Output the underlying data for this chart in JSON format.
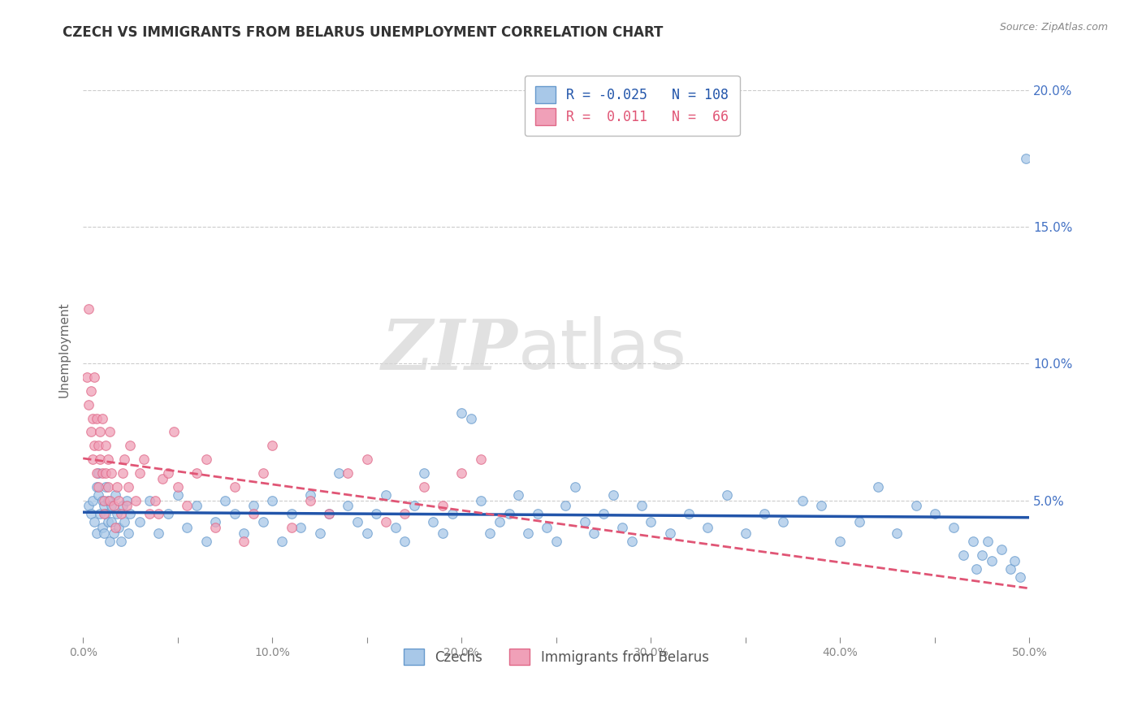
{
  "title": "CZECH VS IMMIGRANTS FROM BELARUS UNEMPLOYMENT CORRELATION CHART",
  "source": "Source: ZipAtlas.com",
  "ylabel": "Unemployment",
  "xlim": [
    0.0,
    0.5
  ],
  "ylim": [
    0.0,
    0.21
  ],
  "xtick_labels": [
    "0.0%",
    "",
    "10.0%",
    "",
    "20.0%",
    "",
    "30.0%",
    "",
    "40.0%",
    "",
    "50.0%"
  ],
  "xtick_vals": [
    0.0,
    0.05,
    0.1,
    0.15,
    0.2,
    0.25,
    0.3,
    0.35,
    0.4,
    0.45,
    0.5
  ],
  "ytick_labels": [
    "5.0%",
    "10.0%",
    "15.0%",
    "20.0%"
  ],
  "ytick_vals": [
    0.05,
    0.1,
    0.15,
    0.2
  ],
  "watermark_zip": "ZIP",
  "watermark_atlas": "atlas",
  "czech_color": "#a8c8e8",
  "belarus_color": "#f0a0b8",
  "czech_edge_color": "#6699cc",
  "belarus_edge_color": "#e06888",
  "czech_trend_color": "#2255aa",
  "belarus_trend_color": "#e05575",
  "legend_r1": "R = -0.025",
  "legend_n1": "N = 108",
  "legend_r2": "R =  0.011",
  "legend_n2": "N =  66",
  "czech_points": [
    [
      0.003,
      0.048
    ],
    [
      0.004,
      0.045
    ],
    [
      0.005,
      0.05
    ],
    [
      0.006,
      0.042
    ],
    [
      0.007,
      0.038
    ],
    [
      0.007,
      0.055
    ],
    [
      0.008,
      0.06
    ],
    [
      0.008,
      0.052
    ],
    [
      0.009,
      0.045
    ],
    [
      0.01,
      0.05
    ],
    [
      0.01,
      0.04
    ],
    [
      0.011,
      0.048
    ],
    [
      0.011,
      0.038
    ],
    [
      0.012,
      0.055
    ],
    [
      0.012,
      0.045
    ],
    [
      0.013,
      0.042
    ],
    [
      0.013,
      0.05
    ],
    [
      0.014,
      0.035
    ],
    [
      0.015,
      0.048
    ],
    [
      0.015,
      0.042
    ],
    [
      0.016,
      0.038
    ],
    [
      0.017,
      0.052
    ],
    [
      0.018,
      0.045
    ],
    [
      0.019,
      0.04
    ],
    [
      0.02,
      0.035
    ],
    [
      0.021,
      0.048
    ],
    [
      0.022,
      0.042
    ],
    [
      0.023,
      0.05
    ],
    [
      0.024,
      0.038
    ],
    [
      0.025,
      0.045
    ],
    [
      0.03,
      0.042
    ],
    [
      0.035,
      0.05
    ],
    [
      0.04,
      0.038
    ],
    [
      0.045,
      0.045
    ],
    [
      0.05,
      0.052
    ],
    [
      0.055,
      0.04
    ],
    [
      0.06,
      0.048
    ],
    [
      0.065,
      0.035
    ],
    [
      0.07,
      0.042
    ],
    [
      0.075,
      0.05
    ],
    [
      0.08,
      0.045
    ],
    [
      0.085,
      0.038
    ],
    [
      0.09,
      0.048
    ],
    [
      0.095,
      0.042
    ],
    [
      0.1,
      0.05
    ],
    [
      0.105,
      0.035
    ],
    [
      0.11,
      0.045
    ],
    [
      0.115,
      0.04
    ],
    [
      0.12,
      0.052
    ],
    [
      0.125,
      0.038
    ],
    [
      0.13,
      0.045
    ],
    [
      0.135,
      0.06
    ],
    [
      0.14,
      0.048
    ],
    [
      0.145,
      0.042
    ],
    [
      0.15,
      0.038
    ],
    [
      0.155,
      0.045
    ],
    [
      0.16,
      0.052
    ],
    [
      0.165,
      0.04
    ],
    [
      0.17,
      0.035
    ],
    [
      0.175,
      0.048
    ],
    [
      0.18,
      0.06
    ],
    [
      0.185,
      0.042
    ],
    [
      0.19,
      0.038
    ],
    [
      0.195,
      0.045
    ],
    [
      0.2,
      0.082
    ],
    [
      0.205,
      0.08
    ],
    [
      0.21,
      0.05
    ],
    [
      0.215,
      0.038
    ],
    [
      0.22,
      0.042
    ],
    [
      0.225,
      0.045
    ],
    [
      0.23,
      0.052
    ],
    [
      0.235,
      0.038
    ],
    [
      0.24,
      0.045
    ],
    [
      0.245,
      0.04
    ],
    [
      0.25,
      0.035
    ],
    [
      0.255,
      0.048
    ],
    [
      0.26,
      0.055
    ],
    [
      0.265,
      0.042
    ],
    [
      0.27,
      0.038
    ],
    [
      0.275,
      0.045
    ],
    [
      0.28,
      0.052
    ],
    [
      0.285,
      0.04
    ],
    [
      0.29,
      0.035
    ],
    [
      0.295,
      0.048
    ],
    [
      0.3,
      0.042
    ],
    [
      0.31,
      0.038
    ],
    [
      0.32,
      0.045
    ],
    [
      0.33,
      0.04
    ],
    [
      0.34,
      0.052
    ],
    [
      0.35,
      0.038
    ],
    [
      0.36,
      0.045
    ],
    [
      0.37,
      0.042
    ],
    [
      0.38,
      0.05
    ],
    [
      0.39,
      0.048
    ],
    [
      0.4,
      0.035
    ],
    [
      0.41,
      0.042
    ],
    [
      0.42,
      0.055
    ],
    [
      0.43,
      0.038
    ],
    [
      0.44,
      0.048
    ],
    [
      0.45,
      0.045
    ],
    [
      0.46,
      0.04
    ],
    [
      0.465,
      0.03
    ],
    [
      0.47,
      0.035
    ],
    [
      0.472,
      0.025
    ],
    [
      0.475,
      0.03
    ],
    [
      0.478,
      0.035
    ],
    [
      0.48,
      0.028
    ],
    [
      0.485,
      0.032
    ],
    [
      0.49,
      0.025
    ],
    [
      0.492,
      0.028
    ],
    [
      0.495,
      0.022
    ],
    [
      0.498,
      0.175
    ]
  ],
  "belarus_points": [
    [
      0.002,
      0.095
    ],
    [
      0.003,
      0.085
    ],
    [
      0.003,
      0.12
    ],
    [
      0.004,
      0.09
    ],
    [
      0.004,
      0.075
    ],
    [
      0.005,
      0.08
    ],
    [
      0.005,
      0.065
    ],
    [
      0.006,
      0.095
    ],
    [
      0.006,
      0.07
    ],
    [
      0.007,
      0.06
    ],
    [
      0.007,
      0.08
    ],
    [
      0.008,
      0.055
    ],
    [
      0.008,
      0.07
    ],
    [
      0.009,
      0.065
    ],
    [
      0.009,
      0.075
    ],
    [
      0.01,
      0.06
    ],
    [
      0.01,
      0.08
    ],
    [
      0.011,
      0.05
    ],
    [
      0.011,
      0.045
    ],
    [
      0.012,
      0.06
    ],
    [
      0.012,
      0.07
    ],
    [
      0.013,
      0.055
    ],
    [
      0.013,
      0.065
    ],
    [
      0.014,
      0.05
    ],
    [
      0.014,
      0.075
    ],
    [
      0.015,
      0.06
    ],
    [
      0.016,
      0.048
    ],
    [
      0.017,
      0.04
    ],
    [
      0.018,
      0.055
    ],
    [
      0.019,
      0.05
    ],
    [
      0.02,
      0.045
    ],
    [
      0.021,
      0.06
    ],
    [
      0.022,
      0.065
    ],
    [
      0.023,
      0.048
    ],
    [
      0.024,
      0.055
    ],
    [
      0.025,
      0.07
    ],
    [
      0.028,
      0.05
    ],
    [
      0.03,
      0.06
    ],
    [
      0.032,
      0.065
    ],
    [
      0.035,
      0.045
    ],
    [
      0.038,
      0.05
    ],
    [
      0.04,
      0.045
    ],
    [
      0.042,
      0.058
    ],
    [
      0.045,
      0.06
    ],
    [
      0.048,
      0.075
    ],
    [
      0.05,
      0.055
    ],
    [
      0.055,
      0.048
    ],
    [
      0.06,
      0.06
    ],
    [
      0.065,
      0.065
    ],
    [
      0.07,
      0.04
    ],
    [
      0.08,
      0.055
    ],
    [
      0.085,
      0.035
    ],
    [
      0.09,
      0.045
    ],
    [
      0.095,
      0.06
    ],
    [
      0.1,
      0.07
    ],
    [
      0.11,
      0.04
    ],
    [
      0.12,
      0.05
    ],
    [
      0.13,
      0.045
    ],
    [
      0.14,
      0.06
    ],
    [
      0.15,
      0.065
    ],
    [
      0.16,
      0.042
    ],
    [
      0.17,
      0.045
    ],
    [
      0.18,
      0.055
    ],
    [
      0.19,
      0.048
    ],
    [
      0.2,
      0.06
    ],
    [
      0.21,
      0.065
    ]
  ]
}
